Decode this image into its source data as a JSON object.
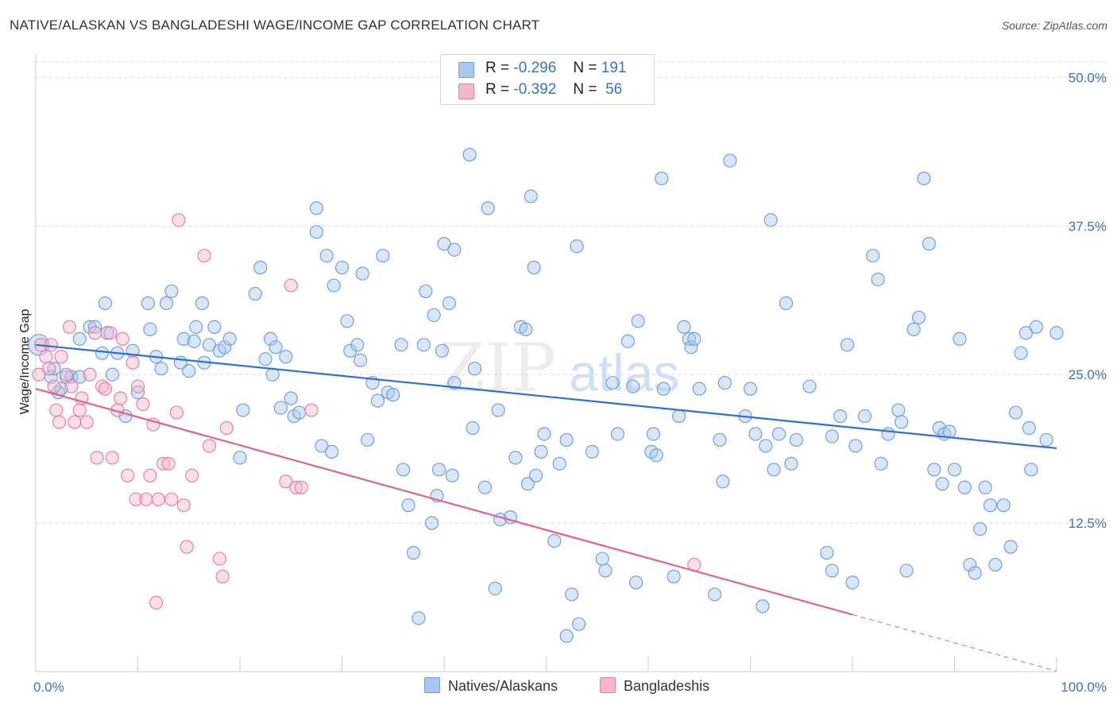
{
  "title": "NATIVE/ALASKAN VS BANGLADESHI WAGE/INCOME GAP CORRELATION CHART",
  "source": "Source: ZipAtlas.com",
  "watermark": {
    "zip": "ZIP",
    "atlas": "atlas"
  },
  "legend": {
    "rows": [
      {
        "r_label": "R =",
        "r_value": "-0.296",
        "n_label": "N =",
        "n_value": "191",
        "color": "#a9c8ef"
      },
      {
        "r_label": "R =",
        "r_value": "-0.392",
        "n_label": "N =",
        "n_value": "56",
        "color": "#f5b7cb"
      }
    ]
  },
  "bottom_legend": [
    {
      "label": "Natives/Alaskans",
      "color": "#a9c8ef"
    },
    {
      "label": "Bangladeshis",
      "color": "#f5b7cb"
    }
  ],
  "chart_data": {
    "type": "scatter",
    "title": "NATIVE/ALASKAN VS BANGLADESHI WAGE/INCOME GAP CORRELATION CHART",
    "xlabel": "",
    "ylabel": "Wage/Income Gap",
    "xlim": [
      0,
      100
    ],
    "ylim": [
      0,
      51.5
    ],
    "x_tick_labels": [
      "0.0%",
      "100.0%"
    ],
    "y_ticks": [
      12.5,
      25.0,
      37.5,
      50.0
    ],
    "y_tick_labels": [
      "12.5%",
      "25.0%",
      "37.5%",
      "50.0%"
    ],
    "grid": "horizontal dashed",
    "legend_position": "top-center",
    "series": [
      {
        "name": "Natives/Alaskans",
        "color": "#6fa0dc",
        "fill": "#a9c8ef",
        "trend": {
          "x": [
            0,
            100
          ],
          "y": [
            27.5,
            18.8
          ]
        },
        "points": [
          [
            0.3,
            27.5
          ],
          [
            1.5,
            24.8
          ],
          [
            1.8,
            25.5
          ],
          [
            2.2,
            23.5
          ],
          [
            2.5,
            23.8
          ],
          [
            3,
            24.8
          ],
          [
            3.5,
            24.8
          ],
          [
            4.3,
            24.8
          ],
          [
            4.3,
            28.0
          ],
          [
            5.3,
            29.0
          ],
          [
            5.8,
            29.0
          ],
          [
            6.5,
            26.8
          ],
          [
            6.8,
            31.0
          ],
          [
            7,
            28.5
          ],
          [
            7.5,
            25.0
          ],
          [
            8,
            26.8
          ],
          [
            8.8,
            21.5
          ],
          [
            9.5,
            27.0
          ],
          [
            10,
            23.5
          ],
          [
            11,
            31.0
          ],
          [
            11.2,
            28.8
          ],
          [
            11.8,
            26.5
          ],
          [
            12.3,
            25.5
          ],
          [
            12.8,
            31.0
          ],
          [
            13.3,
            32.0
          ],
          [
            14.2,
            26.0
          ],
          [
            14.5,
            28.0
          ],
          [
            15,
            25.3
          ],
          [
            15.5,
            27.8
          ],
          [
            15.7,
            29.0
          ],
          [
            16.3,
            31.0
          ],
          [
            16.5,
            26.0
          ],
          [
            17,
            27.5
          ],
          [
            17.5,
            29.0
          ],
          [
            18,
            27.0
          ],
          [
            18.5,
            27.3
          ],
          [
            19,
            28.0
          ],
          [
            20,
            18.0
          ],
          [
            20.3,
            22.0
          ],
          [
            21.5,
            31.8
          ],
          [
            22,
            34.0
          ],
          [
            22.5,
            26.3
          ],
          [
            23,
            28.0
          ],
          [
            23.2,
            25.0
          ],
          [
            23.5,
            27.3
          ],
          [
            24,
            22.2
          ],
          [
            24.5,
            26.5
          ],
          [
            25,
            23.0
          ],
          [
            25.3,
            21.5
          ],
          [
            25.8,
            21.8
          ],
          [
            27.5,
            39.0
          ],
          [
            27.5,
            37.0
          ],
          [
            28,
            19.0
          ],
          [
            28.5,
            35.0
          ],
          [
            29,
            18.5
          ],
          [
            29.2,
            32.5
          ],
          [
            30,
            34.0
          ],
          [
            30.5,
            29.5
          ],
          [
            30.8,
            27.0
          ],
          [
            31.5,
            27.5
          ],
          [
            31.8,
            26.2
          ],
          [
            32,
            33.5
          ],
          [
            32.5,
            19.5
          ],
          [
            33,
            24.3
          ],
          [
            33.5,
            22.8
          ],
          [
            34,
            35.0
          ],
          [
            34.5,
            23.5
          ],
          [
            35,
            23.3
          ],
          [
            35.8,
            27.5
          ],
          [
            36,
            17.0
          ],
          [
            36.5,
            14.0
          ],
          [
            37,
            10.0
          ],
          [
            37.5,
            4.5
          ],
          [
            38,
            27.5
          ],
          [
            38.2,
            32.0
          ],
          [
            38.8,
            12.5
          ],
          [
            39,
            30.0
          ],
          [
            39.3,
            14.8
          ],
          [
            39.5,
            17.0
          ],
          [
            39.8,
            27.0
          ],
          [
            40,
            36.0
          ],
          [
            40.5,
            31.0
          ],
          [
            40.8,
            16.5
          ],
          [
            41,
            35.5
          ],
          [
            41,
            24.3
          ],
          [
            42.5,
            43.5
          ],
          [
            42.8,
            20.5
          ],
          [
            43,
            25.5
          ],
          [
            44,
            15.5
          ],
          [
            44.3,
            39.0
          ],
          [
            45,
            7.0
          ],
          [
            45.3,
            22.0
          ],
          [
            45.5,
            12.8
          ],
          [
            46.5,
            13.0
          ],
          [
            47,
            18.0
          ],
          [
            47.5,
            29.0
          ],
          [
            48,
            28.8
          ],
          [
            48.2,
            15.8
          ],
          [
            48.5,
            40.0
          ],
          [
            48.8,
            34.0
          ],
          [
            49,
            16.5
          ],
          [
            49.5,
            18.5
          ],
          [
            49.8,
            20.0
          ],
          [
            50.8,
            11.0
          ],
          [
            51.3,
            17.5
          ],
          [
            52,
            3.0
          ],
          [
            52,
            19.5
          ],
          [
            52.5,
            6.5
          ],
          [
            53,
            35.8
          ],
          [
            53.2,
            4.0
          ],
          [
            54.5,
            18.5
          ],
          [
            55.5,
            9.5
          ],
          [
            55.8,
            8.5
          ],
          [
            56.5,
            24.3
          ],
          [
            57,
            20.0
          ],
          [
            58,
            27.8
          ],
          [
            58.5,
            24.0
          ],
          [
            58.8,
            7.5
          ],
          [
            59,
            29.5
          ],
          [
            60.3,
            18.5
          ],
          [
            60.5,
            20.0
          ],
          [
            60.8,
            18.2
          ],
          [
            61.3,
            41.5
          ],
          [
            61.5,
            23.8
          ],
          [
            62.5,
            8.0
          ],
          [
            63,
            21.5
          ],
          [
            63.5,
            29.0
          ],
          [
            64,
            28.0
          ],
          [
            64.2,
            27.3
          ],
          [
            64.5,
            28.0
          ],
          [
            65,
            23.8
          ],
          [
            66.5,
            6.5
          ],
          [
            67,
            19.5
          ],
          [
            67.3,
            16.0
          ],
          [
            67.5,
            24.3
          ],
          [
            68,
            43.0
          ],
          [
            69.5,
            21.5
          ],
          [
            70,
            23.8
          ],
          [
            70.5,
            20.0
          ],
          [
            71.2,
            5.5
          ],
          [
            71.5,
            19.0
          ],
          [
            72,
            38.0
          ],
          [
            72.3,
            17.0
          ],
          [
            72.8,
            20.0
          ],
          [
            73.5,
            31.0
          ],
          [
            74,
            17.5
          ],
          [
            74.5,
            19.5
          ],
          [
            75.8,
            24.0
          ],
          [
            77.5,
            10.0
          ],
          [
            78,
            19.8
          ],
          [
            78,
            8.5
          ],
          [
            78.8,
            21.5
          ],
          [
            79.5,
            27.5
          ],
          [
            80,
            7.5
          ],
          [
            80.3,
            19.0
          ],
          [
            81.2,
            21.5
          ],
          [
            82,
            35.0
          ],
          [
            82.5,
            33.0
          ],
          [
            82.8,
            17.5
          ],
          [
            83.5,
            20.0
          ],
          [
            84.5,
            22.0
          ],
          [
            84.8,
            21.0
          ],
          [
            85.3,
            8.5
          ],
          [
            86,
            28.8
          ],
          [
            86.5,
            29.8
          ],
          [
            87,
            41.5
          ],
          [
            87.5,
            36.0
          ],
          [
            88,
            17.0
          ],
          [
            88.5,
            20.5
          ],
          [
            88.8,
            15.8
          ],
          [
            89,
            20.0
          ],
          [
            89.5,
            20.2
          ],
          [
            90,
            17.0
          ],
          [
            90.5,
            28.0
          ],
          [
            91,
            15.5
          ],
          [
            91.5,
            9.0
          ],
          [
            92,
            8.3
          ],
          [
            92.5,
            12.0
          ],
          [
            93,
            15.5
          ],
          [
            93.5,
            14.0
          ],
          [
            94,
            9.0
          ],
          [
            94.8,
            14.0
          ],
          [
            95.5,
            10.5
          ],
          [
            96,
            21.8
          ],
          [
            96.5,
            26.8
          ],
          [
            97,
            28.5
          ],
          [
            97.3,
            20.5
          ],
          [
            97.5,
            17.0
          ],
          [
            98,
            29.0
          ],
          [
            99,
            19.5
          ],
          [
            100,
            28.5
          ]
        ]
      },
      {
        "name": "Bangladeshis",
        "color": "#e87fa2",
        "fill": "#f5b7cb",
        "trend": {
          "x": [
            0,
            80
          ],
          "y": [
            23.8,
            4.8
          ]
        },
        "points": [
          [
            0.3,
            25.0
          ],
          [
            0.5,
            27.5
          ],
          [
            1,
            26.5
          ],
          [
            1.3,
            25.5
          ],
          [
            1.5,
            27.5
          ],
          [
            1.8,
            24.0
          ],
          [
            2,
            22.0
          ],
          [
            2.3,
            21.0
          ],
          [
            2.5,
            26.5
          ],
          [
            3,
            25.0
          ],
          [
            3.3,
            29.0
          ],
          [
            3.5,
            24.0
          ],
          [
            3.8,
            21.0
          ],
          [
            4.3,
            22.0
          ],
          [
            4.5,
            23.0
          ],
          [
            5,
            21.0
          ],
          [
            5.3,
            25.0
          ],
          [
            5.8,
            28.5
          ],
          [
            6,
            18.0
          ],
          [
            6.5,
            24.0
          ],
          [
            6.8,
            23.8
          ],
          [
            7.3,
            28.5
          ],
          [
            7.5,
            18.0
          ],
          [
            8,
            22.0
          ],
          [
            8.3,
            23.0
          ],
          [
            8.5,
            28.0
          ],
          [
            9,
            16.5
          ],
          [
            9.5,
            26.0
          ],
          [
            9.8,
            14.5
          ],
          [
            10,
            24.0
          ],
          [
            10.5,
            22.5
          ],
          [
            10.8,
            14.5
          ],
          [
            11.2,
            16.5
          ],
          [
            11.5,
            20.8
          ],
          [
            11.8,
            5.8
          ],
          [
            12,
            14.5
          ],
          [
            12.5,
            17.5
          ],
          [
            13,
            17.5
          ],
          [
            13.3,
            14.5
          ],
          [
            13.8,
            21.8
          ],
          [
            14,
            38.0
          ],
          [
            14.5,
            14.0
          ],
          [
            14.8,
            10.5
          ],
          [
            15.3,
            16.5
          ],
          [
            16.5,
            35.0
          ],
          [
            17,
            19.0
          ],
          [
            18,
            9.5
          ],
          [
            18.3,
            8.0
          ],
          [
            18.7,
            20.5
          ],
          [
            24.5,
            16.0
          ],
          [
            25,
            32.5
          ],
          [
            25.5,
            15.5
          ],
          [
            26,
            15.5
          ],
          [
            27,
            22.0
          ],
          [
            64.5,
            9.0
          ]
        ]
      }
    ]
  }
}
